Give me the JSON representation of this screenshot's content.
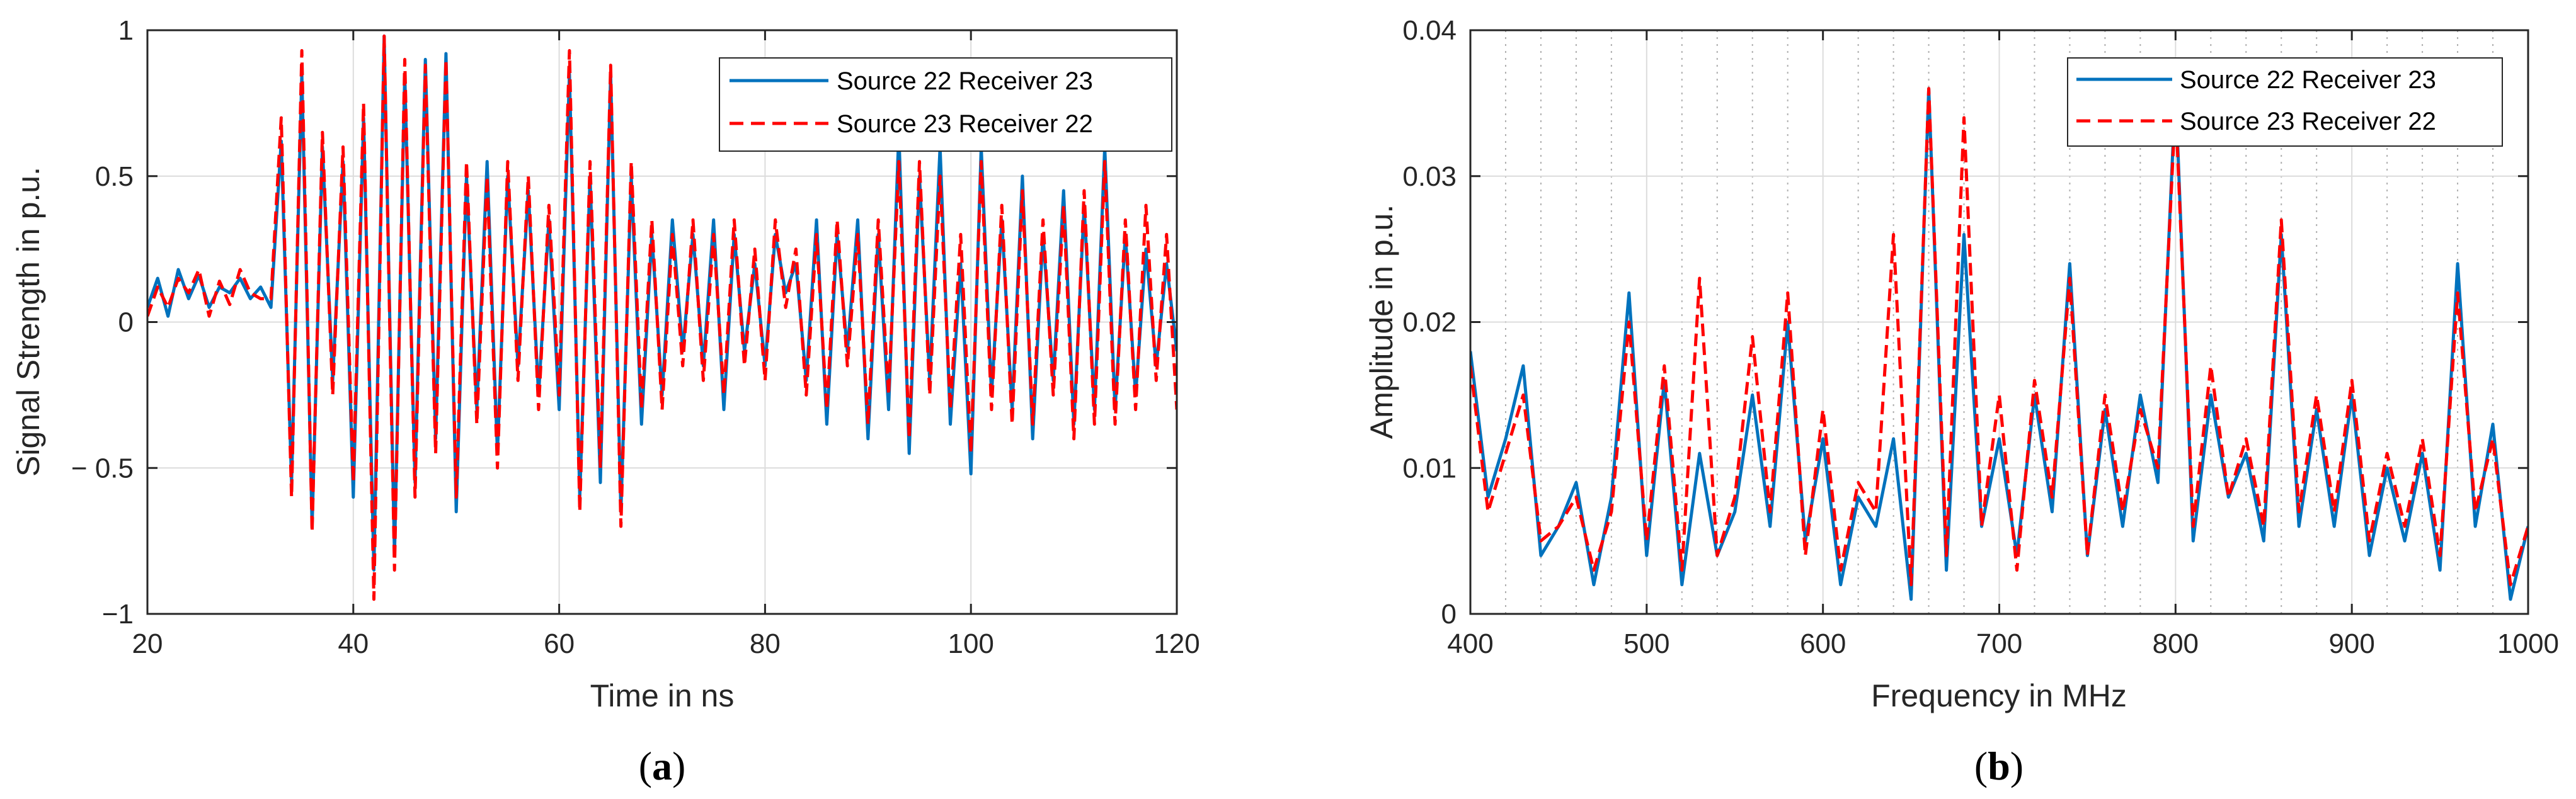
{
  "chart_data": [
    {
      "type": "line",
      "panel_label": "a",
      "xlabel": "Time in ns",
      "ylabel": "Signal Strength in p.u.",
      "xlim": [
        20,
        120
      ],
      "ylim": [
        -1,
        1
      ],
      "xticks": [
        20,
        40,
        60,
        80,
        100,
        120
      ],
      "xtick_labels": [
        "20",
        "40",
        "60",
        "80",
        "100",
        "120"
      ],
      "yticks": [
        -1,
        -0.5,
        0,
        0.5,
        1
      ],
      "ytick_labels": [
        "−1",
        "− 0.5",
        "0",
        "0.5",
        "1"
      ],
      "grid": true,
      "legend_position": "top-right",
      "series": [
        {
          "name": "Source 22 Receiver 23",
          "color": "#0072BD",
          "style": "solid",
          "x": [
            20,
            21,
            22,
            23,
            24,
            25,
            26,
            27,
            28,
            29,
            30,
            31,
            32,
            33,
            34,
            35,
            36,
            37,
            38,
            39,
            40,
            41,
            42,
            43,
            44,
            45,
            46,
            47,
            48,
            49,
            50,
            51,
            52,
            53,
            54,
            55,
            56,
            57,
            58,
            59,
            60,
            61,
            62,
            63,
            64,
            65,
            66,
            67,
            68,
            69,
            70,
            71,
            72,
            73,
            74,
            75,
            76,
            77,
            78,
            79,
            80,
            81,
            82,
            83,
            84,
            85,
            86,
            87,
            88,
            89,
            90,
            91,
            92,
            93,
            94,
            95,
            96,
            97,
            98,
            99,
            100,
            101,
            102,
            103,
            104,
            105,
            106,
            107,
            108,
            109,
            110,
            111,
            112,
            113,
            114,
            115,
            116,
            117,
            118,
            119,
            120
          ],
          "y": [
            0.05,
            0.15,
            0.02,
            0.18,
            0.08,
            0.16,
            0.05,
            0.12,
            0.1,
            0.15,
            0.08,
            0.12,
            0.05,
            0.62,
            -0.55,
            0.85,
            -0.7,
            0.6,
            -0.2,
            0.55,
            -0.6,
            0.7,
            -0.85,
            0.98,
            -0.8,
            0.85,
            -0.55,
            0.9,
            -0.4,
            0.92,
            -0.65,
            0.5,
            -0.3,
            0.55,
            -0.45,
            0.5,
            -0.15,
            0.45,
            -0.25,
            0.35,
            -0.3,
            0.85,
            -0.6,
            0.5,
            -0.55,
            0.85,
            -0.65,
            0.5,
            -0.35,
            0.3,
            -0.25,
            0.35,
            -0.1,
            0.3,
            -0.15,
            0.35,
            -0.3,
            0.3,
            -0.1,
            0.2,
            -0.15,
            0.3,
            0.1,
            0.2,
            -0.2,
            0.35,
            -0.35,
            0.3,
            -0.1,
            0.35,
            -0.4,
            0.3,
            -0.3,
            0.65,
            -0.45,
            0.5,
            -0.2,
            0.6,
            -0.35,
            0.2,
            -0.52,
            0.6,
            -0.25,
            0.35,
            -0.3,
            0.5,
            -0.4,
            0.3,
            -0.2,
            0.45,
            -0.35,
            0.4,
            -0.3,
            0.6,
            -0.3,
            0.3,
            -0.25,
            0.25,
            -0.15,
            0.2,
            -0.1
          ]
        },
        {
          "name": "Source 23 Receiver 22",
          "color": "#FF0000",
          "style": "dashed",
          "x": [
            20,
            21,
            22,
            23,
            24,
            25,
            26,
            27,
            28,
            29,
            30,
            31,
            32,
            33,
            34,
            35,
            36,
            37,
            38,
            39,
            40,
            41,
            42,
            43,
            44,
            45,
            46,
            47,
            48,
            49,
            50,
            51,
            52,
            53,
            54,
            55,
            56,
            57,
            58,
            59,
            60,
            61,
            62,
            63,
            64,
            65,
            66,
            67,
            68,
            69,
            70,
            71,
            72,
            73,
            74,
            75,
            76,
            77,
            78,
            79,
            80,
            81,
            82,
            83,
            84,
            85,
            86,
            87,
            88,
            89,
            90,
            91,
            92,
            93,
            94,
            95,
            96,
            97,
            98,
            99,
            100,
            101,
            102,
            103,
            104,
            105,
            106,
            107,
            108,
            109,
            110,
            111,
            112,
            113,
            114,
            115,
            116,
            117,
            118,
            119,
            120
          ],
          "y": [
            0.02,
            0.12,
            0.05,
            0.15,
            0.1,
            0.18,
            0.02,
            0.14,
            0.06,
            0.18,
            0.1,
            0.08,
            0.08,
            0.7,
            -0.6,
            0.93,
            -0.72,
            0.65,
            -0.25,
            0.6,
            -0.55,
            0.75,
            -0.95,
            0.98,
            -0.85,
            0.9,
            -0.6,
            0.88,
            -0.45,
            0.9,
            -0.6,
            0.55,
            -0.35,
            0.5,
            -0.5,
            0.55,
            -0.2,
            0.5,
            -0.3,
            0.4,
            -0.25,
            0.93,
            -0.65,
            0.55,
            -0.5,
            0.88,
            -0.7,
            0.55,
            -0.3,
            0.35,
            -0.3,
            0.3,
            -0.15,
            0.35,
            -0.2,
            0.3,
            -0.25,
            0.35,
            -0.15,
            0.25,
            -0.2,
            0.35,
            0.05,
            0.25,
            -0.25,
            0.3,
            -0.3,
            0.35,
            -0.15,
            0.3,
            -0.35,
            0.35,
            -0.25,
            0.55,
            -0.4,
            0.55,
            -0.25,
            0.5,
            -0.3,
            0.3,
            -0.45,
            0.55,
            -0.3,
            0.4,
            -0.35,
            0.45,
            -0.35,
            0.35,
            -0.25,
            0.4,
            -0.4,
            0.45,
            -0.35,
            0.55,
            -0.35,
            0.35,
            -0.3,
            0.4,
            -0.2,
            0.3,
            -0.3
          ]
        }
      ]
    },
    {
      "type": "line",
      "panel_label": "b",
      "xlabel": "Frequency in MHz",
      "ylabel": "Amplitude in p.u.",
      "xlim": [
        400,
        1000
      ],
      "ylim": [
        0,
        0.04
      ],
      "xticks": [
        400,
        500,
        600,
        700,
        800,
        900,
        1000
      ],
      "xtick_labels": [
        "400",
        "500",
        "600",
        "700",
        "800",
        "900",
        "1000"
      ],
      "yticks": [
        0,
        0.01,
        0.02,
        0.03,
        0.04
      ],
      "ytick_labels": [
        "0",
        "0.01",
        "0.02",
        "0.03",
        "0.04"
      ],
      "minor_grid_x": [
        420,
        440,
        460,
        480,
        520,
        540,
        560,
        580,
        620,
        640,
        660,
        680,
        720,
        740,
        760,
        780,
        820,
        840,
        860,
        880,
        920,
        940,
        960,
        980
      ],
      "grid": true,
      "legend_position": "top-right",
      "series": [
        {
          "name": "Source 22 Receiver 23",
          "color": "#0072BD",
          "style": "solid",
          "x": [
            400,
            410,
            420,
            430,
            440,
            450,
            460,
            470,
            480,
            490,
            500,
            510,
            520,
            530,
            540,
            550,
            560,
            570,
            580,
            590,
            600,
            610,
            620,
            630,
            640,
            650,
            660,
            670,
            680,
            690,
            700,
            710,
            720,
            730,
            740,
            750,
            760,
            770,
            780,
            790,
            800,
            810,
            820,
            830,
            840,
            850,
            860,
            870,
            880,
            890,
            900,
            910,
            920,
            930,
            940,
            950,
            960,
            970,
            980,
            990,
            1000
          ],
          "y": [
            0.018,
            0.008,
            0.012,
            0.017,
            0.004,
            0.006,
            0.009,
            0.002,
            0.008,
            0.022,
            0.004,
            0.016,
            0.002,
            0.011,
            0.004,
            0.007,
            0.015,
            0.006,
            0.02,
            0.005,
            0.012,
            0.002,
            0.008,
            0.006,
            0.012,
            0.001,
            0.036,
            0.003,
            0.026,
            0.006,
            0.012,
            0.004,
            0.015,
            0.007,
            0.024,
            0.004,
            0.014,
            0.006,
            0.015,
            0.009,
            0.036,
            0.005,
            0.015,
            0.008,
            0.011,
            0.005,
            0.026,
            0.006,
            0.014,
            0.006,
            0.015,
            0.004,
            0.01,
            0.005,
            0.011,
            0.003,
            0.024,
            0.006,
            0.013,
            0.001,
            0.006
          ]
        },
        {
          "name": "Source 23 Receiver 22",
          "color": "#FF0000",
          "style": "dashed",
          "x": [
            400,
            410,
            420,
            430,
            440,
            450,
            460,
            470,
            480,
            490,
            500,
            510,
            520,
            530,
            540,
            550,
            560,
            570,
            580,
            590,
            600,
            610,
            620,
            630,
            640,
            650,
            660,
            670,
            680,
            690,
            700,
            710,
            720,
            730,
            740,
            750,
            760,
            770,
            780,
            790,
            800,
            810,
            820,
            830,
            840,
            850,
            860,
            870,
            880,
            890,
            900,
            910,
            920,
            930,
            940,
            950,
            960,
            970,
            980,
            990,
            1000
          ],
          "y": [
            0.017,
            0.007,
            0.011,
            0.015,
            0.005,
            0.006,
            0.008,
            0.003,
            0.007,
            0.02,
            0.005,
            0.017,
            0.003,
            0.023,
            0.004,
            0.008,
            0.019,
            0.007,
            0.022,
            0.004,
            0.014,
            0.003,
            0.009,
            0.007,
            0.026,
            0.002,
            0.036,
            0.004,
            0.034,
            0.006,
            0.015,
            0.003,
            0.016,
            0.008,
            0.023,
            0.004,
            0.015,
            0.007,
            0.014,
            0.01,
            0.035,
            0.006,
            0.017,
            0.008,
            0.012,
            0.006,
            0.027,
            0.007,
            0.015,
            0.007,
            0.016,
            0.005,
            0.011,
            0.006,
            0.012,
            0.004,
            0.022,
            0.007,
            0.012,
            0.002,
            0.006
          ]
        }
      ]
    }
  ]
}
